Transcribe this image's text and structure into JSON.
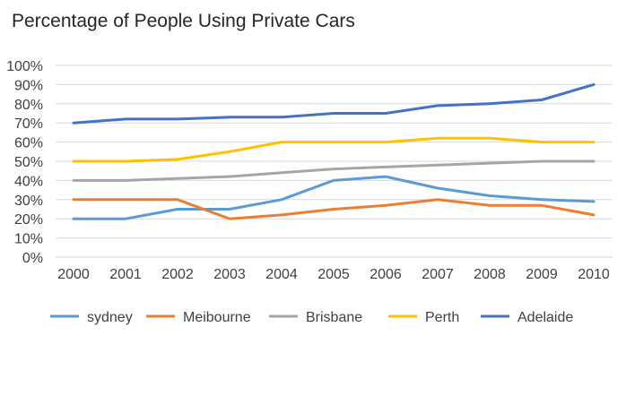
{
  "chart_data": {
    "type": "line",
    "title": "Percentage of People Using Private Cars",
    "xlabel": "",
    "ylabel": "",
    "categories": [
      "2000",
      "2001",
      "2002",
      "2003",
      "2004",
      "2005",
      "2006",
      "2007",
      "2008",
      "2009",
      "2010"
    ],
    "ylim": [
      0,
      100
    ],
    "yticks": [
      "0%",
      "10%",
      "20%",
      "30%",
      "40%",
      "50%",
      "60%",
      "70%",
      "80%",
      "90%",
      "100%"
    ],
    "grid": true,
    "legend_position": "bottom",
    "series": [
      {
        "name": "sydney",
        "color": "#5b9bd5",
        "values": [
          20,
          20,
          25,
          25,
          30,
          40,
          42,
          36,
          32,
          30,
          29
        ]
      },
      {
        "name": "Meibourne",
        "color": "#ed7d31",
        "values": [
          30,
          30,
          30,
          20,
          22,
          25,
          27,
          30,
          27,
          27,
          22
        ]
      },
      {
        "name": "Brisbane",
        "color": "#a5a5a5",
        "values": [
          40,
          40,
          41,
          42,
          44,
          46,
          47,
          48,
          49,
          50,
          50
        ]
      },
      {
        "name": "Perth",
        "color": "#ffc000",
        "values": [
          50,
          50,
          51,
          55,
          60,
          60,
          60,
          62,
          62,
          60,
          60
        ]
      },
      {
        "name": "Adelaide",
        "color": "#4472c4",
        "values": [
          70,
          72,
          72,
          73,
          73,
          75,
          75,
          79,
          80,
          82,
          90
        ]
      }
    ]
  }
}
